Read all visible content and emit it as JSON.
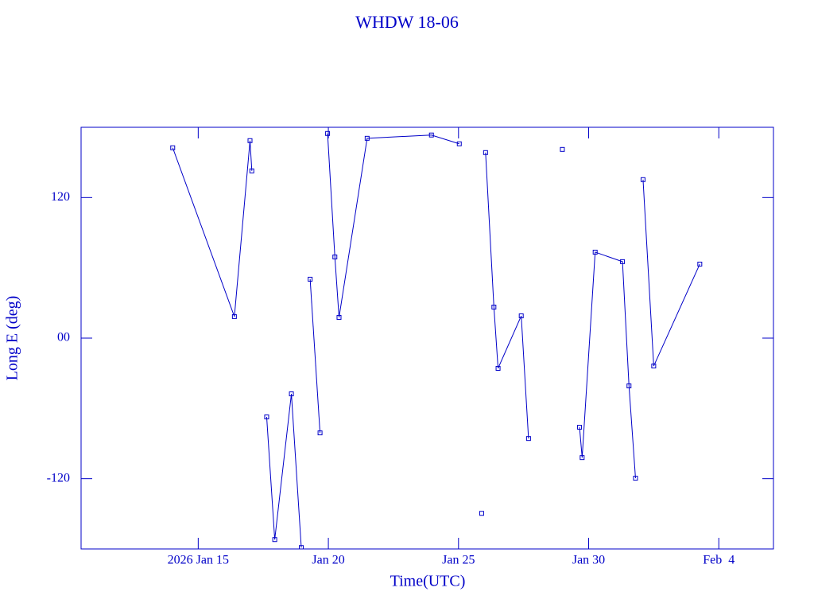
{
  "chart_data": {
    "type": "line",
    "title": "WHDW 18-06",
    "x_label": "Time(UTC)",
    "y_label": "Long E (deg)",
    "color": "#0000c8",
    "xlim": [
      10.5,
      37.1
    ],
    "ylim": [
      -180,
      180
    ],
    "xticks": [
      {
        "value": 15,
        "label": "2026 Jan 15"
      },
      {
        "value": 20,
        "label": "Jan 20"
      },
      {
        "value": 25,
        "label": "Jan 25"
      },
      {
        "value": 30,
        "label": "Jan 30"
      },
      {
        "value": 35,
        "label": "Feb  4"
      }
    ],
    "yticks": [
      -120,
      {
        "value": 0,
        "label": "00"
      },
      120
    ],
    "x": [
      14.02,
      16.39,
      16.99,
      17.06,
      null,
      17.63,
      17.94,
      18.58,
      18.96,
      null,
      19.3,
      19.68,
      null,
      19.97,
      20.25,
      20.41,
      21.49,
      23.96,
      25.03,
      null,
      25.89,
      null,
      26.04,
      26.36,
      26.52,
      27.41,
      27.69,
      null,
      28.99,
      null,
      29.65,
      29.75,
      30.25,
      31.3,
      31.55,
      31.8,
      null,
      32.09,
      32.5,
      34.27
    ],
    "values": [
      162.5,
      18.4,
      168.6,
      142.8,
      null,
      -67.3,
      -172,
      -47.6,
      -178.8,
      null,
      50.3,
      -80.9,
      null,
      174.7,
      69.3,
      17.7,
      170.6,
      173.4,
      165.9,
      null,
      -149.6,
      null,
      158.4,
      26.5,
      -25.8,
      19.0,
      -85.7,
      null,
      161.1,
      null,
      -76.1,
      -102,
      73.4,
      65.3,
      -40.8,
      -119.6,
      null,
      135.3,
      -23.8,
      63.2
    ]
  }
}
